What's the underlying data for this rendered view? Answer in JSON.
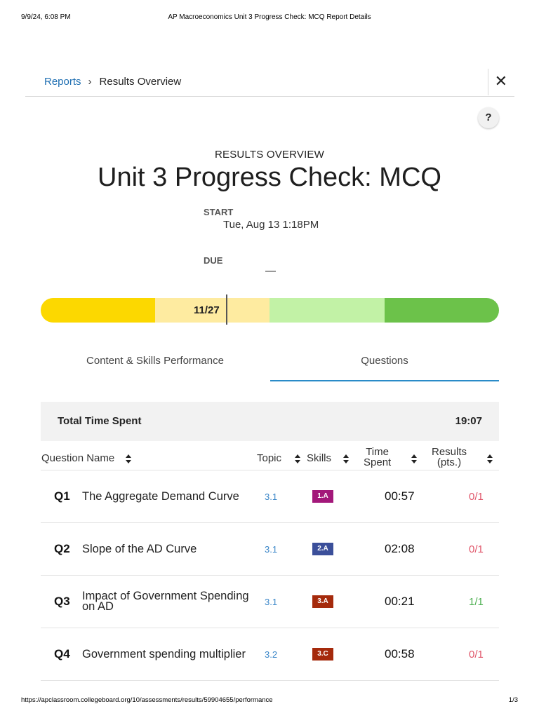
{
  "print_header": {
    "date": "9/9/24, 6:08 PM",
    "title": "AP Macroeconomics Unit 3 Progress Check: MCQ Report Details"
  },
  "print_footer": {
    "url": "https://apclassroom.collegeboard.org/10/assessments/results/59904655/performance",
    "page": "1/3"
  },
  "breadcrumb": {
    "link": "Reports",
    "separator": "›",
    "current": "Results Overview"
  },
  "close_glyph": "✕",
  "help_glyph": "?",
  "overview": {
    "label": "RESULTS OVERVIEW",
    "title": "Unit 3 Progress Check: MCQ",
    "start_label": "START",
    "start_value": "Tue, Aug 13 1:18PM",
    "due_label": "DUE",
    "due_value": "—"
  },
  "score": {
    "text": "11/27",
    "earned": 11,
    "total": 27
  },
  "score_bar_colors": [
    "#fcd800",
    "#feeba0",
    "#c2f2a6",
    "#6cc24a"
  ],
  "tabs": [
    {
      "label": "Content & Skills Performance",
      "active": false
    },
    {
      "label": "Questions",
      "active": true
    }
  ],
  "total_time": {
    "label": "Total Time Spent",
    "value": "19:07"
  },
  "columns": {
    "name": "Question Name",
    "topic": "Topic",
    "skills": "Skills",
    "time_line1": "Time",
    "time_line2": "Spent",
    "results_line1": "Results",
    "results_line2": "(pts.)"
  },
  "questions": [
    {
      "num": "Q1",
      "name": "The Aggregate Demand Curve",
      "topic": "3.1",
      "skill": "1.A",
      "skill_color": "#a3187a",
      "time": "00:57",
      "result": "0/1",
      "result_color": "#e0566a"
    },
    {
      "num": "Q2",
      "name": "Slope of the AD Curve",
      "topic": "3.1",
      "skill": "2.A",
      "skill_color": "#3b4f9a",
      "time": "02:08",
      "result": "0/1",
      "result_color": "#e0566a"
    },
    {
      "num": "Q3",
      "name": "Impact of Government Spending on AD",
      "topic": "3.1",
      "skill": "3.A",
      "skill_color": "#a52a0c",
      "time": "00:21",
      "result": "1/1",
      "result_color": "#4caf50"
    },
    {
      "num": "Q4",
      "name": "Government spending multiplier",
      "topic": "3.2",
      "skill": "3.C",
      "skill_color": "#a52a0c",
      "time": "00:58",
      "result": "0/1",
      "result_color": "#e0566a"
    }
  ]
}
